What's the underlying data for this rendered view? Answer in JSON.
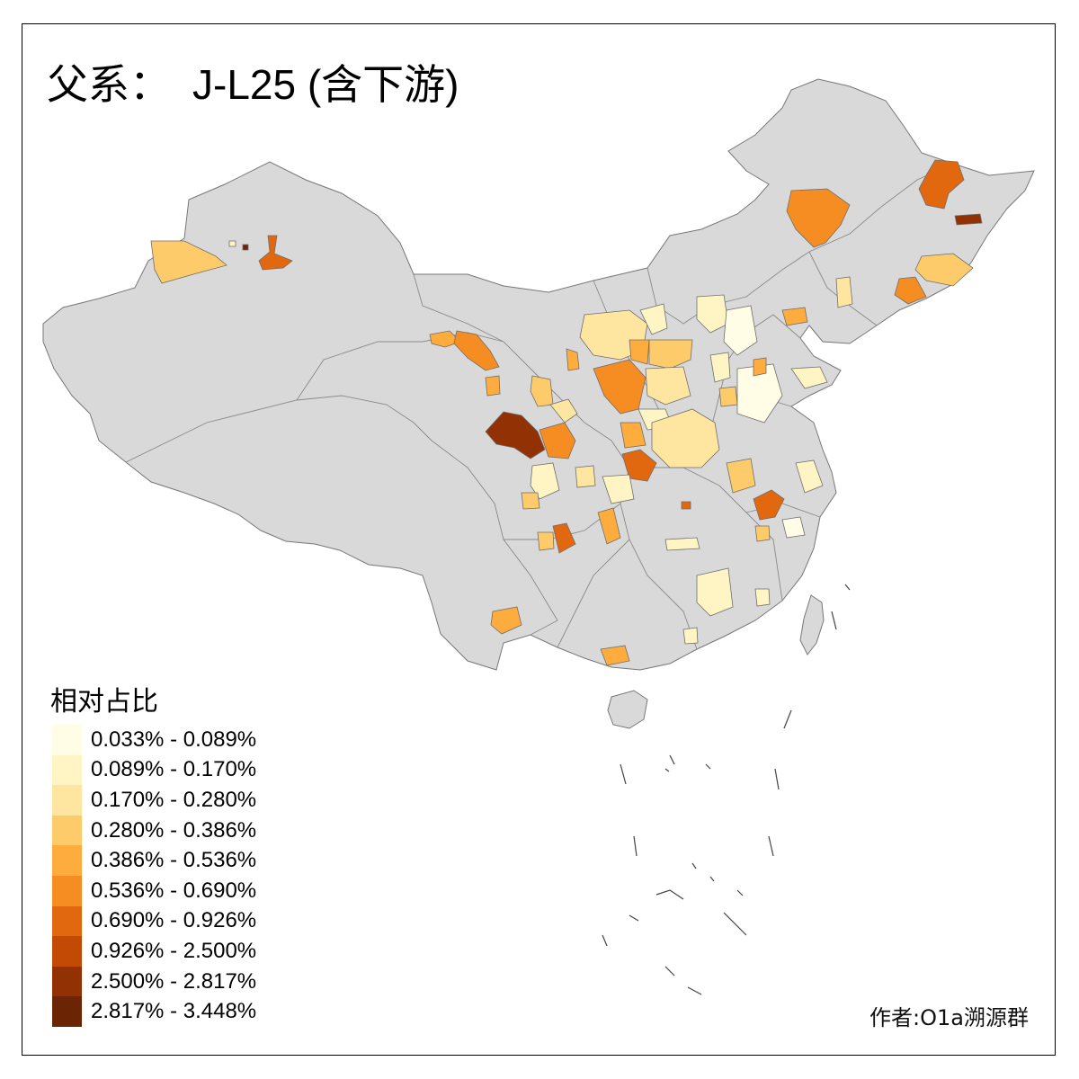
{
  "title": {
    "prefix": "父系：",
    "haplogroup": "J-L25 (含下游)"
  },
  "legend": {
    "title": "相对占比",
    "items": [
      {
        "label": "0.033% - 0.089%",
        "color": "#fffde6"
      },
      {
        "label": "0.089% - 0.170%",
        "color": "#fff5c4"
      },
      {
        "label": "0.170% - 0.280%",
        "color": "#ffe6a0"
      },
      {
        "label": "0.280% - 0.386%",
        "color": "#fecb6b"
      },
      {
        "label": "0.386% - 0.536%",
        "color": "#feac3e"
      },
      {
        "label": "0.536% - 0.690%",
        "color": "#f68d22"
      },
      {
        "label": "0.690% - 0.926%",
        "color": "#e1680e"
      },
      {
        "label": "0.926% - 2.500%",
        "color": "#c24a05"
      },
      {
        "label": "2.500% - 2.817%",
        "color": "#923104"
      },
      {
        "label": "2.817% - 3.448%",
        "color": "#6b2504"
      }
    ]
  },
  "credit": "作者:O1a溯源群",
  "colors": {
    "base_region": "#d9d9d9",
    "boundary": "#777777",
    "background": "#ffffff"
  }
}
